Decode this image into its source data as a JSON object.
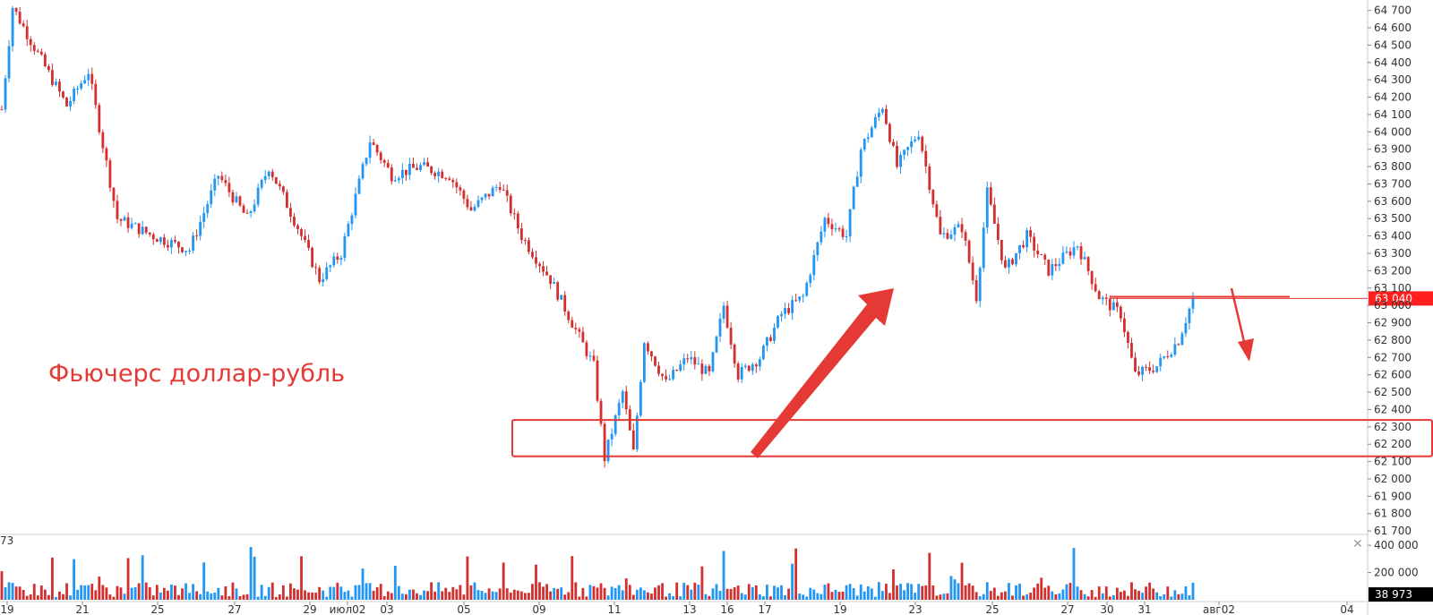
{
  "chart_data": {
    "type": "candlestick",
    "title": "Фьючерс доллар-рубль",
    "colors": {
      "up": "#2196f3",
      "down": "#d32f2f",
      "annotation": "#e53935",
      "grid": "#e6e6e6"
    },
    "y_axis": {
      "ylim": [
        61680,
        64760
      ],
      "ticks": [
        61700,
        61800,
        61900,
        62000,
        62100,
        62200,
        62300,
        62400,
        62500,
        62600,
        62700,
        62800,
        62900,
        63000,
        63100,
        63200,
        63300,
        63400,
        63500,
        63600,
        63700,
        63800,
        63900,
        64000,
        64100,
        64200,
        64300,
        64400,
        64500,
        64600,
        64700
      ],
      "tick_labels": [
        "61 700",
        "61 800",
        "61 900",
        "62 000",
        "62 100",
        "62 200",
        "62 300",
        "62 400",
        "62 500",
        "62 600",
        "62 700",
        "62 800",
        "62 900",
        "63 000",
        "63 100",
        "63 200",
        "63 300",
        "63 400",
        "63 500",
        "63 600",
        "63 700",
        "63 800",
        "63 900",
        "64 000",
        "64 100",
        "64 200",
        "64 300",
        "64 400",
        "64 500",
        "64 600",
        "64 700"
      ]
    },
    "last_price": {
      "value": 63040,
      "label": "63 040"
    },
    "x_labels": [
      "19",
      "21",
      "25",
      "27",
      "29",
      "июл02",
      "03",
      "05",
      "09",
      "11",
      "13",
      "16",
      "17",
      "19",
      "23",
      "25",
      "27",
      "30",
      "31",
      "авг02",
      "04"
    ],
    "anchors": [
      {
        "i": 0,
        "price": 64130
      },
      {
        "i": 3,
        "price": 64720
      },
      {
        "i": 10,
        "price": 64450
      },
      {
        "i": 18,
        "price": 64150
      },
      {
        "i": 24,
        "price": 64350
      },
      {
        "i": 32,
        "price": 63500
      },
      {
        "i": 42,
        "price": 63400
      },
      {
        "i": 52,
        "price": 63320
      },
      {
        "i": 60,
        "price": 63750
      },
      {
        "i": 68,
        "price": 63500
      },
      {
        "i": 74,
        "price": 63800
      },
      {
        "i": 82,
        "price": 63450
      },
      {
        "i": 88,
        "price": 63150
      },
      {
        "i": 94,
        "price": 63300
      },
      {
        "i": 102,
        "price": 63950
      },
      {
        "i": 108,
        "price": 63750
      },
      {
        "i": 116,
        "price": 63800
      },
      {
        "i": 124,
        "price": 63750
      },
      {
        "i": 130,
        "price": 63550
      },
      {
        "i": 138,
        "price": 63700
      },
      {
        "i": 144,
        "price": 63400
      },
      {
        "i": 152,
        "price": 63150
      },
      {
        "i": 158,
        "price": 62900
      },
      {
        "i": 164,
        "price": 62650
      },
      {
        "i": 167,
        "price": 62120
      },
      {
        "i": 172,
        "price": 62500
      },
      {
        "i": 175,
        "price": 62150
      },
      {
        "i": 178,
        "price": 62800
      },
      {
        "i": 184,
        "price": 62550
      },
      {
        "i": 190,
        "price": 62700
      },
      {
        "i": 196,
        "price": 62600
      },
      {
        "i": 200,
        "price": 63000
      },
      {
        "i": 204,
        "price": 62600
      },
      {
        "i": 210,
        "price": 62700
      },
      {
        "i": 216,
        "price": 62950
      },
      {
        "i": 222,
        "price": 63050
      },
      {
        "i": 228,
        "price": 63500
      },
      {
        "i": 234,
        "price": 63400
      },
      {
        "i": 238,
        "price": 63900
      },
      {
        "i": 244,
        "price": 64150
      },
      {
        "i": 248,
        "price": 63800
      },
      {
        "i": 254,
        "price": 64000
      },
      {
        "i": 260,
        "price": 63400
      },
      {
        "i": 266,
        "price": 63450
      },
      {
        "i": 270,
        "price": 63050
      },
      {
        "i": 273,
        "price": 63650
      },
      {
        "i": 278,
        "price": 63200
      },
      {
        "i": 284,
        "price": 63400
      },
      {
        "i": 290,
        "price": 63200
      },
      {
        "i": 298,
        "price": 63350
      },
      {
        "i": 304,
        "price": 63050
      },
      {
        "i": 310,
        "price": 62950
      },
      {
        "i": 314,
        "price": 62600
      },
      {
        "i": 320,
        "price": 62650
      },
      {
        "i": 326,
        "price": 62800
      },
      {
        "i": 330,
        "price": 63040
      }
    ],
    "volume": {
      "ticks": [
        200000,
        400000
      ],
      "tick_labels": [
        "200 000",
        "400 000"
      ],
      "max": 460000,
      "last_label": "38 973",
      "top_left_label": "73"
    },
    "annotations": {
      "support_zone": [
        62130,
        62340
      ],
      "resistance_line": 63050
    }
  }
}
